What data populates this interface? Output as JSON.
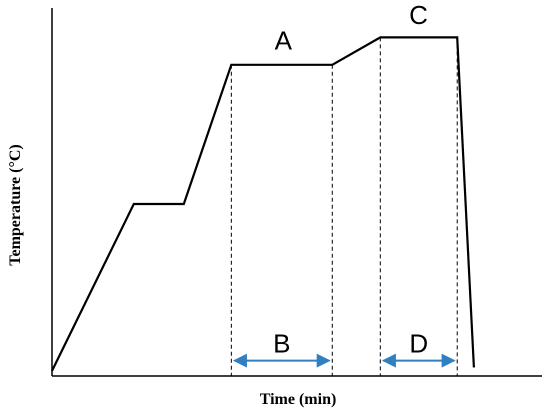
{
  "chart_data": {
    "type": "line",
    "xlabel": "Time (min)",
    "ylabel": "Temperature (°C)",
    "grid": false,
    "legend": "none",
    "xlim": [
      0,
      100
    ],
    "ylim": [
      0,
      100
    ],
    "series": [
      {
        "x": [
          0,
          16.7,
          26.9,
          36.6,
          57.2,
          67.0,
          82.7,
          86.1
        ],
        "y": [
          1.5,
          50.3,
          50.3,
          91.0,
          91.0,
          99.0,
          99.0,
          2.5
        ]
      }
    ],
    "annotations": [
      {
        "label": "A",
        "type": "text",
        "x": 47.2,
        "y": 95.5
      },
      {
        "label": "C",
        "type": "text",
        "x": 74.8,
        "y": 103.0
      },
      {
        "label": "B",
        "type": "double-arrow",
        "x_start": 36.6,
        "x_end": 57.2,
        "y": 4.5
      },
      {
        "label": "D",
        "type": "double-arrow",
        "x_start": 67.0,
        "x_end": 82.7,
        "y": 4.5
      }
    ],
    "reference_lines": [
      {
        "x": 36.6,
        "from_y": 0,
        "to_y": 91.0
      },
      {
        "x": 57.2,
        "from_y": 0,
        "to_y": 91.0
      },
      {
        "x": 67.0,
        "from_y": 0,
        "to_y": 99.0
      },
      {
        "x": 82.7,
        "from_y": 0,
        "to_y": 99.0
      }
    ],
    "colors": {
      "line": "#000000",
      "arrow": "#2f7fc1",
      "axis": "#000000"
    }
  }
}
